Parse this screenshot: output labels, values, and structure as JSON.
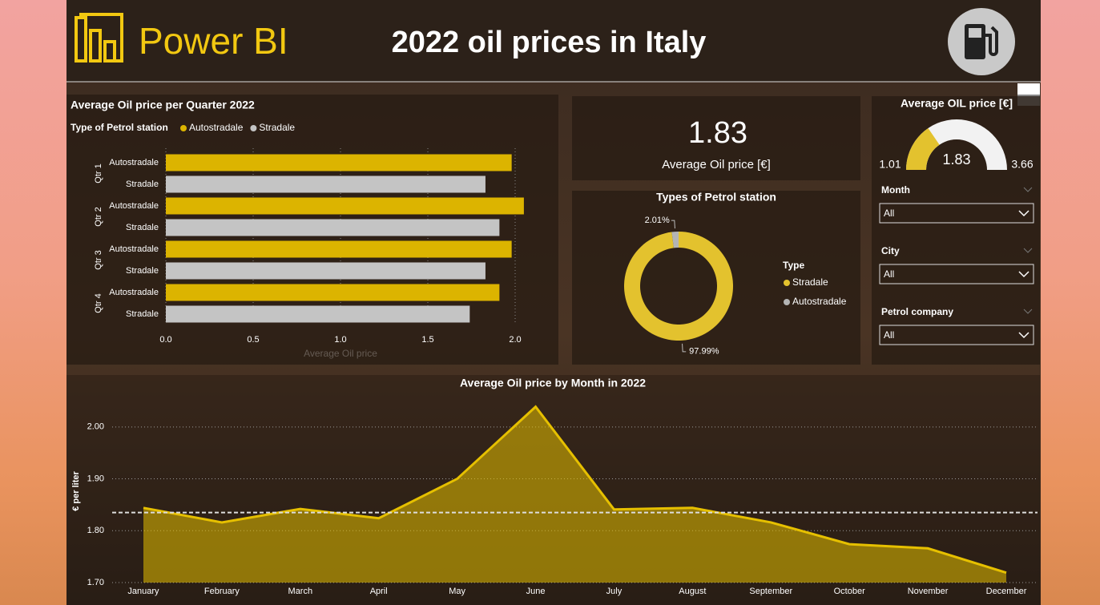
{
  "header": {
    "logo": "Power BI",
    "title": "2022 oil prices in Italy"
  },
  "kpi": {
    "value": 1.83,
    "label": "Average Oil price [€]"
  },
  "slicers": [
    {
      "label": "Month",
      "value": "All"
    },
    {
      "label": "City",
      "value": "All"
    },
    {
      "label": "Petrol company",
      "value": "All"
    }
  ],
  "chart_data": [
    {
      "type": "bar",
      "orientation": "horizontal",
      "title": "Average Oil price per Quarter 2022",
      "legend_title": "Type of Petrol station",
      "x_label": "Average Oil price",
      "categories": [
        "Qtr 1",
        "Qtr 2",
        "Qtr 3",
        "Qtr 4"
      ],
      "series": [
        {
          "name": "Autostradale",
          "color": "#dcb400",
          "values": [
            1.98,
            2.05,
            1.98,
            1.91
          ]
        },
        {
          "name": "Stradale",
          "color": "#c4c4c4",
          "values": [
            1.83,
            1.91,
            1.83,
            1.74
          ]
        }
      ],
      "xlim": [
        0,
        2.1
      ],
      "xticks": [
        {
          "value": 0,
          "label": "0.0"
        },
        0.5,
        {
          "value": 1,
          "label": "1.0"
        },
        1.5,
        {
          "value": 2,
          "label": "2.0"
        }
      ],
      "grid": true
    },
    {
      "type": "donut",
      "title": "Types of Petrol station",
      "legend_title": "Type",
      "categories": [
        "Stradale",
        "Autostradale"
      ],
      "values": [
        97.99,
        2.01
      ],
      "value_labels": [
        "97.99%",
        "2.01%"
      ],
      "colors": [
        "#e3c22e",
        "#b4b4b4"
      ]
    },
    {
      "type": "gauge",
      "title": "Average OIL price [€]",
      "value": 1.83,
      "range": [
        1.01,
        3.66
      ],
      "color": "#e3c22e",
      "track_color": "#f2f2f2"
    },
    {
      "type": "area",
      "title": "Average Oil price by Month in 2022",
      "y_label": "€ per liter",
      "categories": [
        "January",
        "February",
        "March",
        "April",
        "May",
        "June",
        "July",
        "August",
        "September",
        "October",
        "November",
        "December"
      ],
      "values": [
        1.844,
        1.816,
        1.842,
        1.824,
        1.9,
        2.039,
        1.841,
        1.844,
        1.816,
        1.774,
        1.766,
        1.719
      ],
      "color": "#e6c000",
      "average_line": 1.835,
      "ylim": [
        1.7,
        2.06
      ],
      "yticks": [
        {
          "value": 1.7,
          "label": "1.70"
        },
        {
          "value": 1.8,
          "label": "1.80"
        },
        {
          "value": 1.9,
          "label": "1.90"
        },
        {
          "value": 2.0,
          "label": "2.00"
        }
      ],
      "grid": true
    }
  ]
}
